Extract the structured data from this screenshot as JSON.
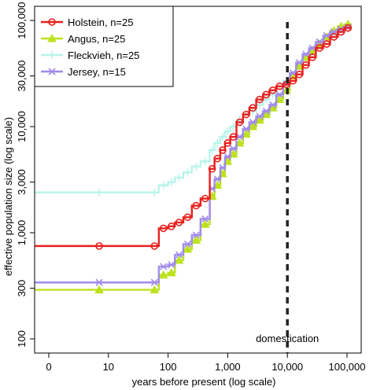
{
  "chart_data": {
    "type": "line",
    "step": true,
    "xlabel": "years before present (log scale)",
    "ylabel": "effective population size (log scale)",
    "x_scale": "log",
    "y_scale": "log",
    "xlim": [
      1,
      100000
    ],
    "ylim": [
      100,
      100000
    ],
    "x_ticks": [
      {
        "value": 1,
        "label": "0"
      },
      {
        "value": 10,
        "label": "10"
      },
      {
        "value": 100,
        "label": "100"
      },
      {
        "value": 1000,
        "label": "1,000"
      },
      {
        "value": 10000,
        "label": "10,000"
      },
      {
        "value": 100000,
        "label": "100,000"
      }
    ],
    "y_ticks": [
      {
        "value": 100,
        "label": "100"
      },
      {
        "value": 300,
        "label": "300"
      },
      {
        "value": 1000,
        "label": "1,000"
      },
      {
        "value": 3000,
        "label": "3,000"
      },
      {
        "value": 10000,
        "label": "10,000"
      },
      {
        "value": 30000,
        "label": "30,000"
      },
      {
        "value": 100000,
        "label": "100,000"
      }
    ],
    "grid": false,
    "legend_position": "top-left",
    "annotations": [
      {
        "text": "domestication",
        "x": 10000,
        "style": "vertical-dashed-line"
      }
    ],
    "series": [
      {
        "name": "Holstein, n=25",
        "color": "#e8201e",
        "marker": "circle",
        "x": [
          1,
          50,
          70,
          100,
          130,
          180,
          250,
          350,
          500,
          600,
          750,
          900,
          1100,
          1400,
          1800,
          2300,
          3000,
          3900,
          5000,
          6500,
          8500,
          11000,
          14000,
          18000,
          23000,
          30000,
          40000,
          52000,
          70000,
          90000,
          120000
        ],
        "y": [
          750,
          750,
          1100,
          1150,
          1250,
          1400,
          1800,
          2100,
          4000,
          5000,
          6000,
          7000,
          8000,
          11000,
          13000,
          15000,
          18000,
          20000,
          22000,
          24000,
          25000,
          27000,
          31000,
          38000,
          45000,
          55000,
          60000,
          70000,
          78000,
          85000,
          85000
        ]
      },
      {
        "name": "Angus, n=25",
        "color": "#bde21e",
        "marker": "triangle",
        "x": [
          1,
          50,
          70,
          100,
          130,
          180,
          250,
          350,
          500,
          600,
          750,
          900,
          1100,
          1400,
          1800,
          2300,
          3000,
          3900,
          5000,
          6500,
          8500,
          11000,
          14000,
          18000,
          23000,
          30000,
          40000,
          52000,
          70000,
          90000,
          120000
        ],
        "y": [
          290,
          290,
          400,
          420,
          550,
          700,
          850,
          1200,
          2200,
          2800,
          3600,
          4700,
          5500,
          7000,
          8500,
          10000,
          11500,
          13000,
          15000,
          18000,
          22000,
          30000,
          37000,
          45000,
          52000,
          60000,
          70000,
          80000,
          88000,
          92000,
          92000
        ]
      },
      {
        "name": "Fleckvieh, n=25",
        "color": "#b7f4ea",
        "marker": "plus",
        "x": [
          1,
          50,
          70,
          100,
          130,
          180,
          250,
          350,
          500,
          600,
          750,
          900,
          1100,
          1400,
          1800,
          2300,
          3000,
          3900,
          5000,
          6500,
          8500,
          11000,
          14000,
          18000,
          23000,
          30000,
          40000,
          52000,
          70000,
          90000,
          120000
        ],
        "y": [
          2400,
          2400,
          2800,
          3000,
          3300,
          3700,
          4200,
          4700,
          6000,
          7000,
          8000,
          9000,
          10000,
          11500,
          13000,
          14000,
          16000,
          18000,
          20000,
          24000,
          27000,
          31000,
          36000,
          43000,
          50000,
          58000,
          66000,
          74000,
          80000,
          84000,
          84000
        ]
      },
      {
        "name": "Jersey, n=15",
        "color": "#a18bec",
        "marker": "x",
        "x": [
          1,
          50,
          70,
          100,
          130,
          180,
          250,
          350,
          500,
          600,
          750,
          900,
          1100,
          1400,
          1800,
          2300,
          3000,
          3900,
          5000,
          6500,
          8500,
          11000,
          14000,
          18000,
          23000,
          30000,
          40000,
          52000,
          70000,
          90000,
          120000
        ],
        "y": [
          340,
          340,
          480,
          500,
          620,
          780,
          950,
          1350,
          2600,
          3200,
          4100,
          5200,
          6200,
          8000,
          9500,
          11000,
          12500,
          14000,
          16000,
          20000,
          25000,
          32000,
          40000,
          48000,
          55000,
          63000,
          72000,
          78000,
          83000,
          86000,
          86000
        ]
      }
    ]
  }
}
